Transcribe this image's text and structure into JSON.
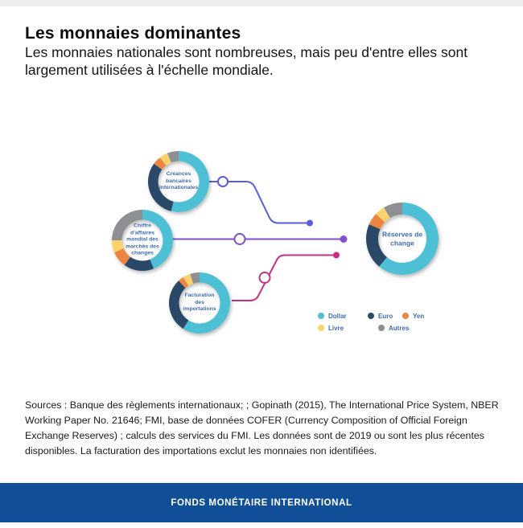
{
  "page": {
    "title": "Les monnaies dominantes",
    "subtitle": "Les monnaies nationales sont nombreuses, mais peu d'entre elles sont largement utilisées à l'échelle mondiale.",
    "source_text": "Sources : Banque des règlements internationaux; ; Gopinath (2015), The International Price System, NBER Working Paper No. 21646; FMI, base de données COFER (Currency Composition of Official Foreign Exchange Reserves) ; calculs des services du FMI. Les données sont de 2019 ou sont les plus récentes disponibles. La facturation des importations exclut les monnaies non identifiées.",
    "footer": "FONDS MONÉTAIRE INTERNATIONAL"
  },
  "colors": {
    "dollar": "#4ec0d6",
    "euro": "#2c4a68",
    "yen": "#ed8540",
    "livre": "#f9d36a",
    "autres": "#8d8f92",
    "label_text": "#3b6cb4",
    "line_blue": "#5a5edd",
    "line_purple": "#8050c8",
    "line_pink": "#c62e87",
    "footer_bg": "#104f98",
    "top_strip": "#ededed"
  },
  "chart_data": {
    "type": "pie",
    "subtype": "donut-multiples",
    "categories": [
      "Dollar",
      "Euro",
      "Yen",
      "Livre",
      "Autres"
    ],
    "palette": [
      "#4ec0d6",
      "#2c4a68",
      "#ed8540",
      "#f9d36a",
      "#8d8f92"
    ],
    "legend": {
      "position": "bottom-right",
      "items": [
        "Dollar",
        "Euro",
        "Yen",
        "Livre",
        "Autres"
      ]
    },
    "donuts": [
      {
        "id": "creances-bancaires-internationales",
        "label": "Créances bancaires internationales",
        "label_lines": [
          "Créances",
          "bancaires",
          "internationales"
        ],
        "values": [
          54,
          31,
          4.5,
          4.5,
          6
        ],
        "center": [
          222,
          226
        ],
        "outer_r": 38,
        "inner_r": 25.5
      },
      {
        "id": "chiffre-affaires-marches-changes",
        "label": "Chiffre d'affaires mondial des marchés des changes",
        "label_lines": [
          "Chiffre",
          "d'affaires",
          "mondial des",
          "marchés des",
          "changes"
        ],
        "values": [
          44,
          16,
          8.5,
          6.5,
          25
        ],
        "center": [
          177,
          299
        ],
        "outer_r": 38,
        "inner_r": 25.5
      },
      {
        "id": "facturation-importations",
        "label": "Facturation des importations",
        "label_lines": [
          "Facturation",
          "des",
          "importations"
        ],
        "values": [
          59,
          29,
          3,
          4,
          5
        ],
        "center": [
          248,
          377
        ],
        "outer_r": 38,
        "inner_r": 25.5
      },
      {
        "id": "reserves-de-change",
        "label": "Réserves de change",
        "label_lines": [
          "Réserves de",
          "change"
        ],
        "values": [
          61,
          20.5,
          5.5,
          4.5,
          8.5
        ],
        "center": [
          500,
          297
        ],
        "outer_r": 45,
        "inner_r": 30
      }
    ]
  }
}
